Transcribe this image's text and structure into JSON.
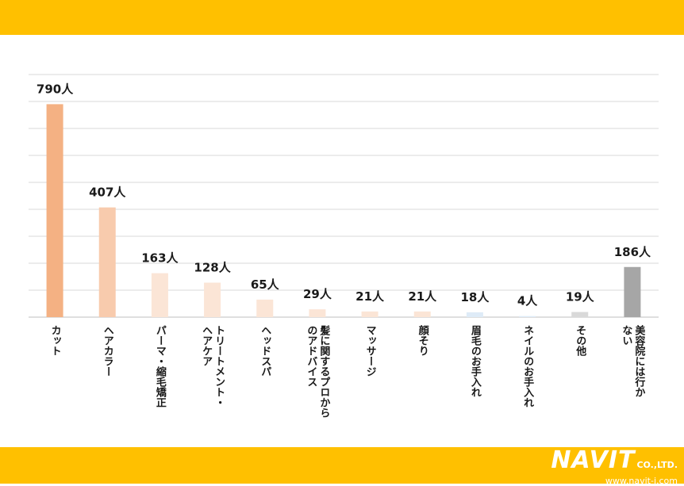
{
  "chart_data": {
    "type": "bar",
    "categories": [
      "カット",
      "ヘアカラー",
      "パーマ・縮毛矯正",
      "トリートメント・ヘアケア",
      "ヘッドスパ",
      "髪に関するプロからのアドバイス",
      "マッサージ",
      "顔そり",
      "眉毛のお手入れ",
      "ネイルのお手入れ",
      "その他",
      "美容院には行かない"
    ],
    "category_lines": [
      [
        "カット"
      ],
      [
        "ヘアカラー"
      ],
      [
        "パーマ・縮毛矯正"
      ],
      [
        "トリートメント・",
        "ヘアケア"
      ],
      [
        "ヘッドスパ"
      ],
      [
        "髪に関するプロから",
        "のアドバイス"
      ],
      [
        "マッサージ"
      ],
      [
        "顔そり"
      ],
      [
        "眉毛のお手入れ"
      ],
      [
        "ネイルのお手入れ"
      ],
      [
        "その他"
      ],
      [
        "美容院には行か",
        "ない"
      ]
    ],
    "values": [
      790,
      407,
      163,
      128,
      65,
      29,
      21,
      21,
      18,
      4,
      19,
      186
    ],
    "data_labels": [
      "790人",
      "407人",
      "163人",
      "128人",
      "65人",
      "29人",
      "21人",
      "21人",
      "18人",
      "4人",
      "19人",
      "186人"
    ],
    "colors": [
      "#F4B183",
      "#F8CBAD",
      "#FBE5D6",
      "#FBE5D6",
      "#FBE5D6",
      "#FBE5D6",
      "#FBE5D6",
      "#FBE5D6",
      "#DEEBF7",
      "#DEEBF7",
      "#D9D9D9",
      "#A6A6A6"
    ],
    "ylim": [
      0,
      900
    ],
    "grid": true,
    "title": "",
    "xlabel": "",
    "ylabel": ""
  },
  "brand": {
    "name": "NAVIT",
    "suffix": "CO.,LTD.",
    "url": "www.navit-j.com"
  }
}
